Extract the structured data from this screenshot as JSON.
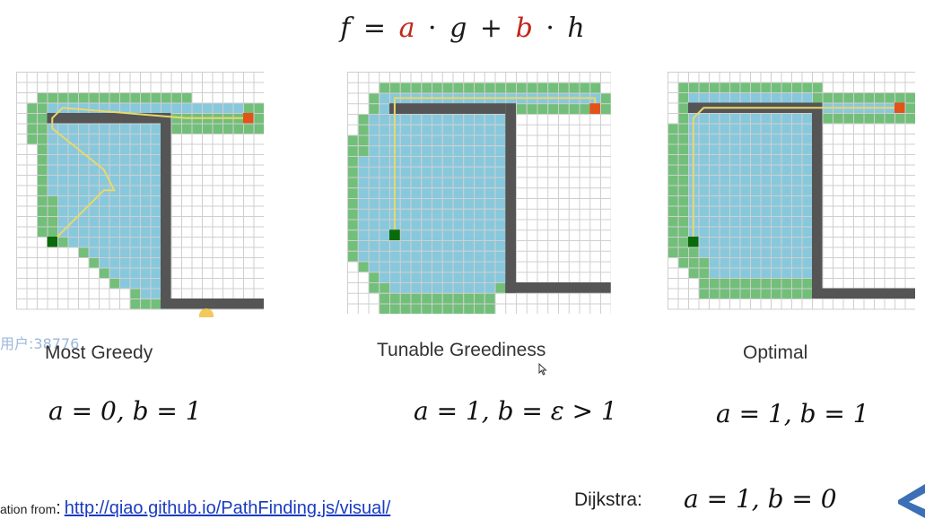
{
  "formula": {
    "f": "f",
    "eq": "=",
    "a": "a",
    "dot1": "·",
    "g": "g",
    "plus": "+",
    "b": "b",
    "dot2": "·",
    "h": "h"
  },
  "panels": [
    {
      "title": "Most Greedy",
      "equation": "a = 0, b = 1"
    },
    {
      "title": "Tunable Greediness",
      "equation": "a = 1, b = ε > 1"
    },
    {
      "title": "Optimal",
      "equation": "a = 1, b = 1"
    }
  ],
  "watermark": "用户:38776",
  "footer": {
    "prefix": "ation from",
    "colon": ":",
    "link": "http://qiao.github.io/PathFinding.js/visual/"
  },
  "dijkstra": {
    "label": "Dijkstra:",
    "equation": "a = 1, b = 0"
  },
  "colors": {
    "open": "#72bf7a",
    "closed": "#88c8dc",
    "wall": "#555555",
    "start": "#0b6b0b",
    "end": "#e2531a",
    "path": "#e8d96a",
    "grid": "#cfcfcf",
    "red": "#c0261a"
  }
}
